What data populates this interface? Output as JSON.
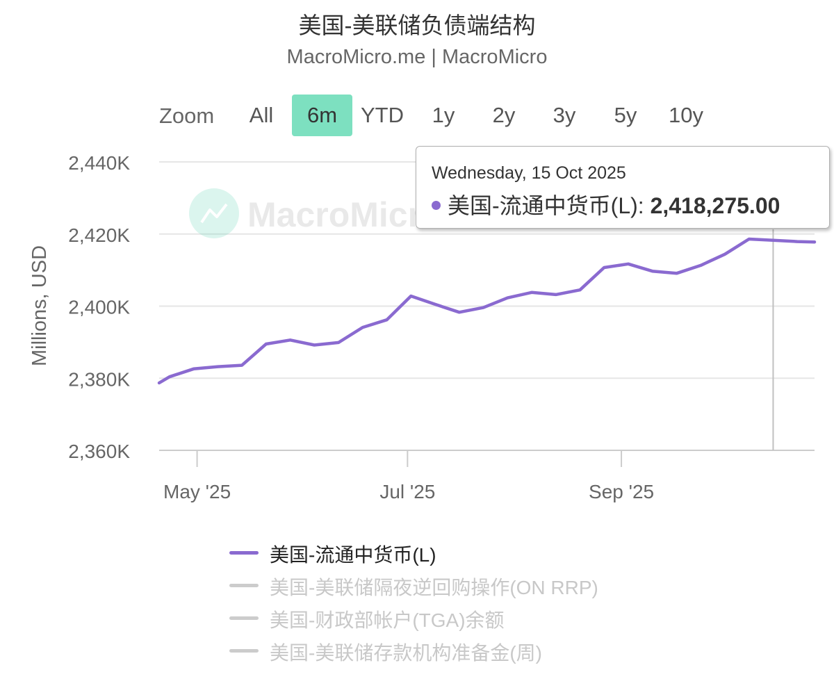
{
  "title": "美国-美联储负债端结构",
  "subtitle": "MacroMicro.me | MacroMicro",
  "watermark": "MacroMicro",
  "zoom": {
    "label": "Zoom",
    "buttons": [
      {
        "label": "All",
        "active": false
      },
      {
        "label": "6m",
        "active": true
      },
      {
        "label": "YTD",
        "active": false
      },
      {
        "label": "1y",
        "active": false
      },
      {
        "label": "2y",
        "active": false
      },
      {
        "label": "3y",
        "active": false
      },
      {
        "label": "5y",
        "active": false
      },
      {
        "label": "10y",
        "active": false
      }
    ]
  },
  "tooltip": {
    "date": "Wednesday, 15 Oct 2025",
    "series": "美国-流通中货币(L): ",
    "value": "2,418,275.00"
  },
  "legend": [
    {
      "label": "美国-流通中货币(L)",
      "visible": true,
      "color": "#8a6ad0"
    },
    {
      "label": "美国-美联储隔夜逆回购操作(ON RRP)",
      "visible": false,
      "color": "#cccccc"
    },
    {
      "label": "美国-财政部帐户(TGA)余额",
      "visible": false,
      "color": "#cccccc"
    },
    {
      "label": "美国-美联储存款机构准备金(周)",
      "visible": false,
      "color": "#cccccc"
    }
  ],
  "chart_data": {
    "type": "line",
    "ylabel": "Millions, USD",
    "ylim": [
      2360000,
      2440000
    ],
    "yticks": [
      2360000,
      2380000,
      2400000,
      2420000,
      2440000
    ],
    "ytick_labels": [
      "2,360K",
      "2,380K",
      "2,400K",
      "2,420K",
      "2,440K"
    ],
    "xlim": [
      "2025-04-20",
      "2025-10-27"
    ],
    "xticks": [
      "2025-05-01",
      "2025-07-01",
      "2025-09-01"
    ],
    "xtick_labels": [
      "May '25",
      "Jul '25",
      "Sep '25"
    ],
    "crosshair_x": "2025-10-15",
    "grid": true,
    "series": [
      {
        "name": "美国-流通中货币(L)",
        "color": "#8a6ad0",
        "x": [
          "2025-04-20",
          "2025-04-23",
          "2025-04-30",
          "2025-05-07",
          "2025-05-14",
          "2025-05-21",
          "2025-05-28",
          "2025-06-04",
          "2025-06-11",
          "2025-06-18",
          "2025-06-25",
          "2025-07-02",
          "2025-07-09",
          "2025-07-16",
          "2025-07-23",
          "2025-07-30",
          "2025-08-06",
          "2025-08-13",
          "2025-08-20",
          "2025-08-27",
          "2025-09-03",
          "2025-09-10",
          "2025-09-17",
          "2025-09-24",
          "2025-10-01",
          "2025-10-08",
          "2025-10-15",
          "2025-10-22",
          "2025-10-27"
        ],
        "y": [
          2378700,
          2380400,
          2382600,
          2383200,
          2383600,
          2389500,
          2390600,
          2389200,
          2389900,
          2394100,
          2396200,
          2402800,
          2400500,
          2398300,
          2399600,
          2402300,
          2403800,
          2403200,
          2404500,
          2410700,
          2411700,
          2409700,
          2409100,
          2411300,
          2414400,
          2418600,
          2418275,
          2417900,
          2417800
        ]
      }
    ]
  }
}
